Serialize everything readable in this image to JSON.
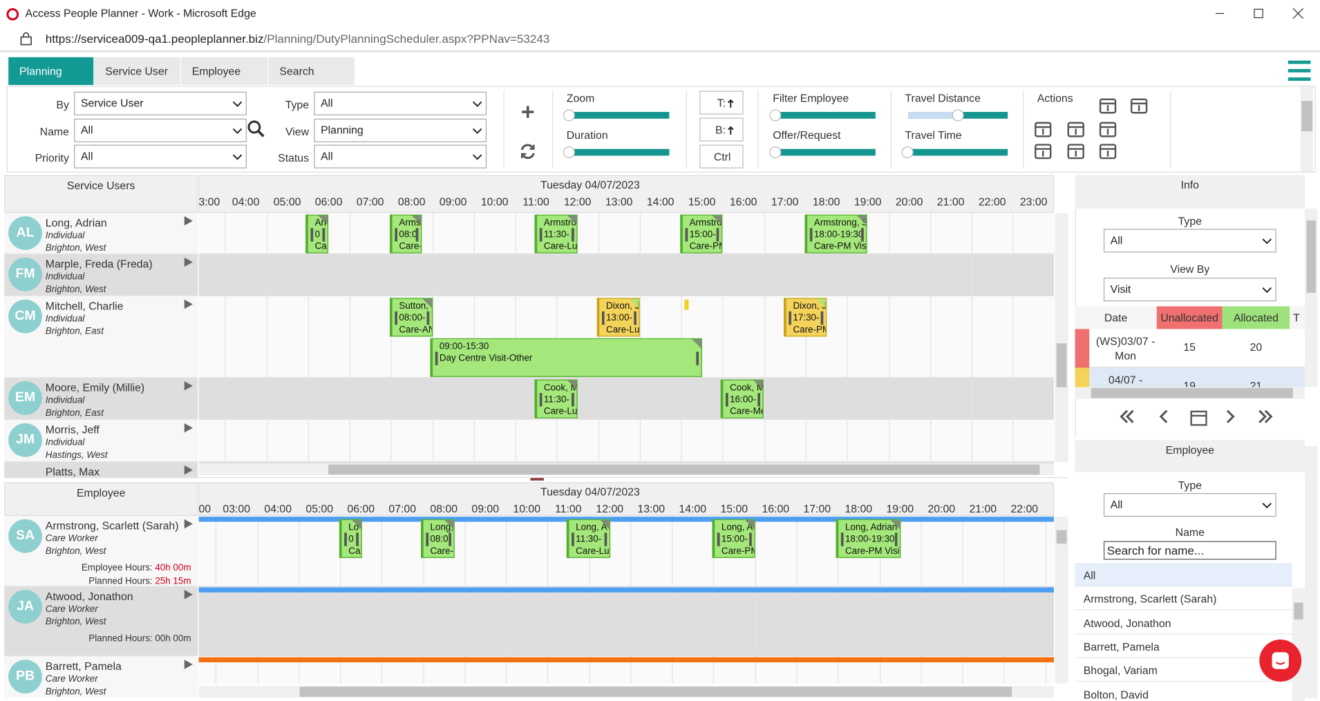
{
  "browser": {
    "title": "Access People Planner - Work - Microsoft Edge",
    "url_host": "https://servicea009-qa1.peopleplanner.biz",
    "url_path": "/Planning/DutyPlanningScheduler.aspx?PPNav=53243"
  },
  "tabs": [
    "Planning",
    "Service User",
    "Employee",
    "Search"
  ],
  "filters": [
    {
      "label": "By",
      "value": "Service User"
    },
    {
      "label": "Name",
      "value": "All"
    },
    {
      "label": "Priority",
      "value": "All"
    },
    {
      "label": "Type",
      "value": "All"
    },
    {
      "label": "View",
      "value": "Planning"
    },
    {
      "label": "Status",
      "value": "All"
    }
  ],
  "buttons": [
    "T:",
    "B:",
    "Ctrl"
  ],
  "sliders": [
    "Zoom",
    "Duration",
    "Filter Employee",
    "Offer/Request",
    "Travel Distance",
    "Travel Time"
  ],
  "actions_label": "Actions",
  "service_users": {
    "header": "Service Users",
    "date": "Tuesday 04/07/2023",
    "hours": [
      "3:00",
      "04:00",
      "05:00",
      "06:00",
      "07:00",
      "08:00",
      "09:00",
      "10:00",
      "11:00",
      "12:00",
      "13:00",
      "14:00",
      "15:00",
      "16:00",
      "17:00",
      "18:00",
      "19:00",
      "20:00",
      "21:00",
      "22:00",
      "23:00"
    ],
    "rows": [
      {
        "initials": "AL",
        "name": "Long, Adrian",
        "type": "Individual",
        "area": "Brighton, West"
      },
      {
        "initials": "FM",
        "name": "Marple, Freda (Freda)",
        "type": "Individual",
        "area": "Brighton, West"
      },
      {
        "initials": "CM",
        "name": "Mitchell, Charlie",
        "type": "Individual",
        "area": "Brighton, East"
      },
      {
        "initials": "EM",
        "name": "Moore, Emily (Millie)",
        "type": "Individual",
        "area": "Brighton, East"
      },
      {
        "initials": "JM",
        "name": "Morris, Jeff",
        "type": "Individual",
        "area": "Hastings, West"
      },
      {
        "name": "Platts, Max"
      }
    ],
    "visits": [
      {
        "lines": [
          "Arr",
          "0",
          "Ca"
        ],
        "color": "#a4e77a"
      },
      {
        "lines": [
          "Arms",
          "08:0",
          "Care-"
        ],
        "color": "#a4e77a"
      },
      {
        "lines": [
          "Armstro",
          "11:30-",
          "Care-Lu"
        ],
        "color": "#a4e77a"
      },
      {
        "lines": [
          "Armstro",
          "15:00-",
          "Care-PM"
        ],
        "color": "#a4e77a"
      },
      {
        "lines": [
          "Armstrong, S",
          "18:00-19:30",
          "Care-PM Visi"
        ],
        "color": "#a4e77a"
      },
      {
        "lines": [
          "Sutton,",
          "08:00-",
          "Care-AN"
        ],
        "color": "#a4e77a"
      },
      {
        "lines": [
          "Dixon, J",
          "13:00-",
          "Care-Lu"
        ],
        "color": "#f3d35a"
      },
      {
        "lines": [
          "Dixon, J",
          "17:30-",
          "Care-PM"
        ],
        "color": "#f3d35a"
      },
      {
        "lines": [
          "09:00-15:30",
          "Day Centre Visit-Other"
        ],
        "color": "#a4e77a"
      },
      {
        "lines": [
          "Cook, M",
          "11:30-",
          "Care-Lu"
        ],
        "color": "#a4e77a"
      },
      {
        "lines": [
          "Cook, M",
          "16:00-",
          "Care-Me"
        ],
        "color": "#a4e77a"
      }
    ]
  },
  "employees": {
    "header": "Employee",
    "date": "Tuesday 04/07/2023",
    "hours": [
      "00",
      "03:00",
      "04:00",
      "05:00",
      "06:00",
      "07:00",
      "08:00",
      "09:00",
      "10:00",
      "11:00",
      "12:00",
      "13:00",
      "14:00",
      "15:00",
      "16:00",
      "17:00",
      "18:00",
      "19:00",
      "20:00",
      "21:00",
      "22:00"
    ],
    "rows": [
      {
        "initials": "SA",
        "name": "Armstrong, Scarlett (Sarah)",
        "role": "Care Worker",
        "area": "Brighton, West",
        "bar_color": "#4d9ef0",
        "hours": [
          {
            "label": "Employee Hours:",
            "value": "40h 00m",
            "color": "#d0021b"
          },
          {
            "label": "Planned Hours:",
            "value": "25h 15m",
            "color": "#d0021b"
          }
        ]
      },
      {
        "initials": "JA",
        "name": "Atwood, Jonathon",
        "role": "Care Worker",
        "area": "Brighton, West",
        "bar_color": "#4d9ef0",
        "hours": [
          {
            "label": "Planned Hours:",
            "value": "00h 00m",
            "color": "#333333"
          }
        ]
      },
      {
        "initials": "PB",
        "name": "Barrett, Pamela",
        "role": "Care Worker",
        "area": "Brighton, West",
        "bar_color": "#f5700f",
        "hours": []
      }
    ],
    "visits": [
      {
        "lines": [
          "Lo",
          "0",
          "Ca"
        ],
        "color": "#a4e77a"
      },
      {
        "lines": [
          "Long,",
          "08:0",
          "Care-"
        ],
        "color": "#a4e77a"
      },
      {
        "lines": [
          "Long, A",
          "11:30-",
          "Care-Lu"
        ],
        "color": "#a4e77a"
      },
      {
        "lines": [
          "Long, A",
          "15:00-",
          "Care-PM"
        ],
        "color": "#a4e77a"
      },
      {
        "lines": [
          "Long, Adrian",
          "18:00-19:30",
          "Care-PM Visi"
        ],
        "color": "#a4e77a"
      }
    ]
  },
  "info": {
    "title": "Info",
    "type_label": "Type",
    "type_value": "All",
    "viewby_label": "View By",
    "viewby_value": "Visit",
    "columns": [
      "Date",
      "Unallocated",
      "Allocated",
      "T"
    ],
    "rows": [
      [
        "(WS)03/07 - Mon",
        "15",
        "20"
      ],
      [
        "04/07 -",
        "19",
        "21"
      ]
    ]
  },
  "employee_panel": {
    "title": "Employee",
    "type_label": "Type",
    "type_value": "All",
    "name_label": "Name",
    "search_placeholder": "Search for name...",
    "list": [
      "All",
      "Armstrong, Scarlett (Sarah)",
      "Atwood, Jonathon",
      "Barrett, Pamela",
      "Bhogal, Variam",
      "Bolton, David"
    ]
  }
}
